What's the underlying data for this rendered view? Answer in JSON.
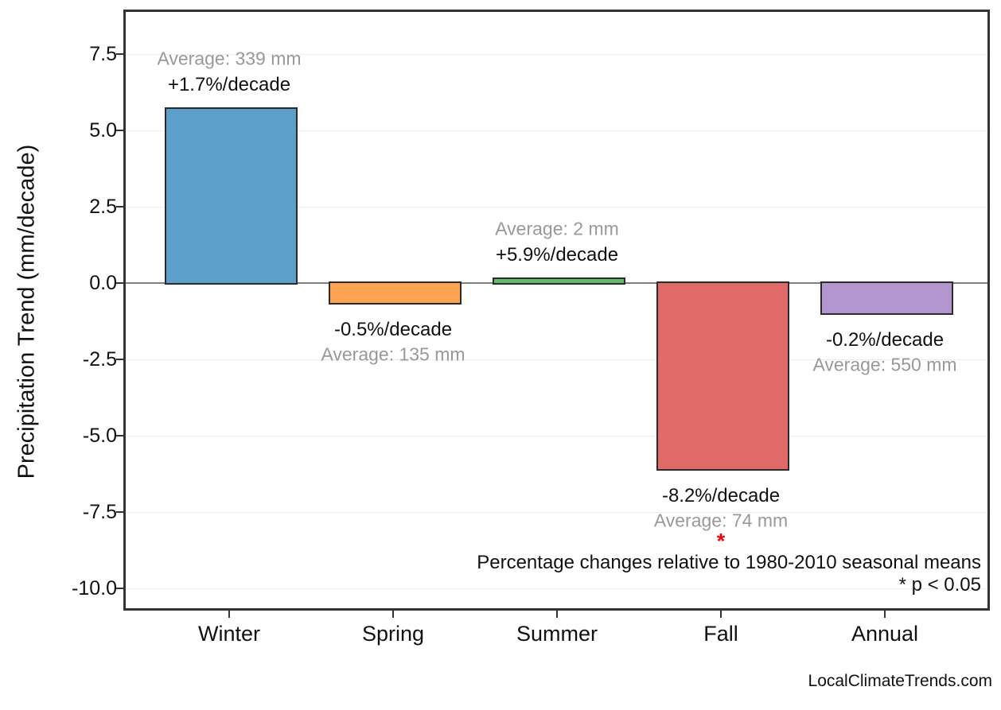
{
  "figure": {
    "watermark": "LocalClimateTrends.com"
  },
  "notes": {
    "footnote": "Percentage changes relative to 1980-2010 seasonal means",
    "significance": "* p < 0.05"
  },
  "text_colors": {
    "primary": "#111111",
    "muted": "#999999"
  },
  "chart_data": {
    "type": "bar",
    "title": "",
    "ylabel": "Precipitation Trend (mm/decade)",
    "xlabel": "",
    "categories": [
      "Winter",
      "Spring",
      "Summer",
      "Fall",
      "Annual"
    ],
    "values": [
      5.7,
      -0.65,
      0.12,
      -6.1,
      -1.0
    ],
    "averages_mm": [
      339,
      135,
      2,
      74,
      550
    ],
    "pct_per_decade": [
      1.7,
      -0.5,
      5.9,
      -8.2,
      -0.2
    ],
    "yticks": [
      7.5,
      5.0,
      2.5,
      0.0,
      -2.5,
      -5.0,
      -7.5,
      -10.0
    ],
    "ylim": [
      -10.7,
      9.0
    ],
    "grid": true,
    "legend_position": "none",
    "bar_colors": [
      "#5C9FCB",
      "#FCA451",
      "#62BC66",
      "#E06A68",
      "#B396CF"
    ],
    "bar_edge_color": "#2B2B2B",
    "zero_line_color": "#808080",
    "annotations": [
      {
        "category": "Winter",
        "pct_label": "+1.7%/decade",
        "avg_label": "Average: 339 mm",
        "significant": false
      },
      {
        "category": "Spring",
        "pct_label": "-0.5%/decade",
        "avg_label": "Average: 135 mm",
        "significant": false
      },
      {
        "category": "Summer",
        "pct_label": "+5.9%/decade",
        "avg_label": "Average: 2 mm",
        "significant": false
      },
      {
        "category": "Fall",
        "pct_label": "-8.2%/decade",
        "avg_label": "Average: 74 mm",
        "significant": true
      },
      {
        "category": "Annual",
        "pct_label": "-0.2%/decade",
        "avg_label": "Average: 550 mm",
        "significant": false
      }
    ],
    "significance_marker": "*",
    "significance_marker_color": "#FF0000"
  }
}
